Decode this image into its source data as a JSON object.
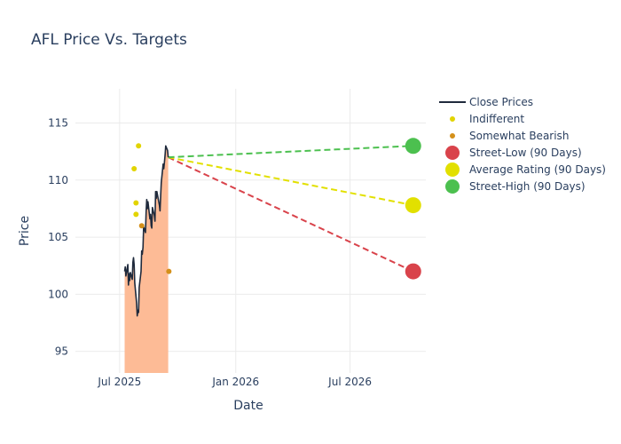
{
  "chart_data": {
    "type": "line",
    "title": "AFL Price Vs. Targets",
    "xlabel": "Date",
    "ylabel": "Price",
    "xlim": [
      "2025-04-22",
      "2026-10-29"
    ],
    "ylim": [
      93.1,
      118.0
    ],
    "grid": true,
    "legend_position": "top-right",
    "x_ticks": [
      {
        "date": "2025-07-01",
        "label": "Jul 2025"
      },
      {
        "date": "2026-01-01",
        "label": "Jan 2026"
      },
      {
        "date": "2026-07-01",
        "label": "Jul 2026"
      }
    ],
    "y_ticks": [
      95,
      100,
      105,
      110,
      115
    ],
    "colors": {
      "close": "#1f2a3c",
      "area_fill": "#fdbb96",
      "indifferent": "#e2d400",
      "somewhat_bearish": "#d4901a",
      "street_low": "#d9434b",
      "average": "#e2e000",
      "street_high": "#4cc04f",
      "grid": "#ebebeb",
      "text": "#2a3f5f"
    },
    "series": [
      {
        "name": "Close Prices",
        "kind": "line-area",
        "points": [
          [
            "2025-07-09",
            102.0
          ],
          [
            "2025-07-10",
            102.4
          ],
          [
            "2025-07-11",
            101.6
          ],
          [
            "2025-07-14",
            102.6
          ],
          [
            "2025-07-15",
            100.8
          ],
          [
            "2025-07-16",
            101.8
          ],
          [
            "2025-07-17",
            101.2
          ],
          [
            "2025-07-18",
            101.9
          ],
          [
            "2025-07-21",
            101.3
          ],
          [
            "2025-07-22",
            102.8
          ],
          [
            "2025-07-23",
            103.2
          ],
          [
            "2025-07-24",
            102.6
          ],
          [
            "2025-07-25",
            101.0
          ],
          [
            "2025-07-28",
            99.2
          ],
          [
            "2025-07-29",
            98.1
          ],
          [
            "2025-07-30",
            98.6
          ],
          [
            "2025-07-31",
            98.4
          ],
          [
            "2025-08-01",
            100.6
          ],
          [
            "2025-08-04",
            102.0
          ],
          [
            "2025-08-05",
            103.8
          ],
          [
            "2025-08-06",
            103.5
          ],
          [
            "2025-08-07",
            104.1
          ],
          [
            "2025-08-08",
            105.9
          ],
          [
            "2025-08-11",
            105.4
          ],
          [
            "2025-08-12",
            107.2
          ],
          [
            "2025-08-13",
            108.3
          ],
          [
            "2025-08-14",
            107.5
          ],
          [
            "2025-08-15",
            108.1
          ],
          [
            "2025-08-18",
            106.6
          ],
          [
            "2025-08-19",
            107.0
          ],
          [
            "2025-08-20",
            106.0
          ],
          [
            "2025-08-21",
            105.8
          ],
          [
            "2025-08-22",
            107.6
          ],
          [
            "2025-08-25",
            106.9
          ],
          [
            "2025-08-26",
            106.4
          ],
          [
            "2025-08-27",
            109.0
          ],
          [
            "2025-08-28",
            108.4
          ],
          [
            "2025-08-29",
            109.0
          ],
          [
            "2025-09-02",
            107.8
          ],
          [
            "2025-09-03",
            107.3
          ],
          [
            "2025-09-04",
            108.6
          ],
          [
            "2025-09-05",
            109.8
          ],
          [
            "2025-09-08",
            111.4
          ],
          [
            "2025-09-09",
            111.0
          ],
          [
            "2025-09-10",
            111.6
          ],
          [
            "2025-09-11",
            112.2
          ],
          [
            "2025-09-12",
            113.0
          ],
          [
            "2025-09-15",
            112.6
          ],
          [
            "2025-09-16",
            112.0
          ]
        ]
      },
      {
        "name": "Indifferent",
        "kind": "scatter",
        "points": [
          [
            "2025-07-24",
            111.0
          ],
          [
            "2025-07-31",
            113.0
          ],
          [
            "2025-07-27",
            108.0
          ],
          [
            "2025-07-27",
            107.0
          ]
        ]
      },
      {
        "name": "Somewhat Bearish",
        "kind": "scatter",
        "points": [
          [
            "2025-08-05",
            106.0
          ],
          [
            "2025-09-17",
            102.0
          ]
        ]
      },
      {
        "name": "Street-Low (90 Days)",
        "kind": "target",
        "start": [
          "2025-09-16",
          112.0
        ],
        "end": [
          "2026-10-09",
          102.0
        ]
      },
      {
        "name": "Average Rating (90 Days)",
        "kind": "target",
        "start": [
          "2025-09-16",
          112.0
        ],
        "end": [
          "2026-10-09",
          107.8
        ]
      },
      {
        "name": "Street-High (90 Days)",
        "kind": "target",
        "start": [
          "2025-09-16",
          112.0
        ],
        "end": [
          "2026-10-09",
          113.0
        ]
      }
    ],
    "legend": [
      {
        "label": "Close Prices",
        "symbol": "line",
        "color_key": "close"
      },
      {
        "label": "Indifferent",
        "symbol": "small-dot",
        "color_key": "indifferent"
      },
      {
        "label": "Somewhat Bearish",
        "symbol": "small-dot",
        "color_key": "somewhat_bearish"
      },
      {
        "label": "Street-Low (90 Days)",
        "symbol": "big-dot",
        "color_key": "street_low"
      },
      {
        "label": "Average Rating (90 Days)",
        "symbol": "big-dot",
        "color_key": "average"
      },
      {
        "label": "Street-High (90 Days)",
        "symbol": "big-dot",
        "color_key": "street_high"
      }
    ]
  }
}
